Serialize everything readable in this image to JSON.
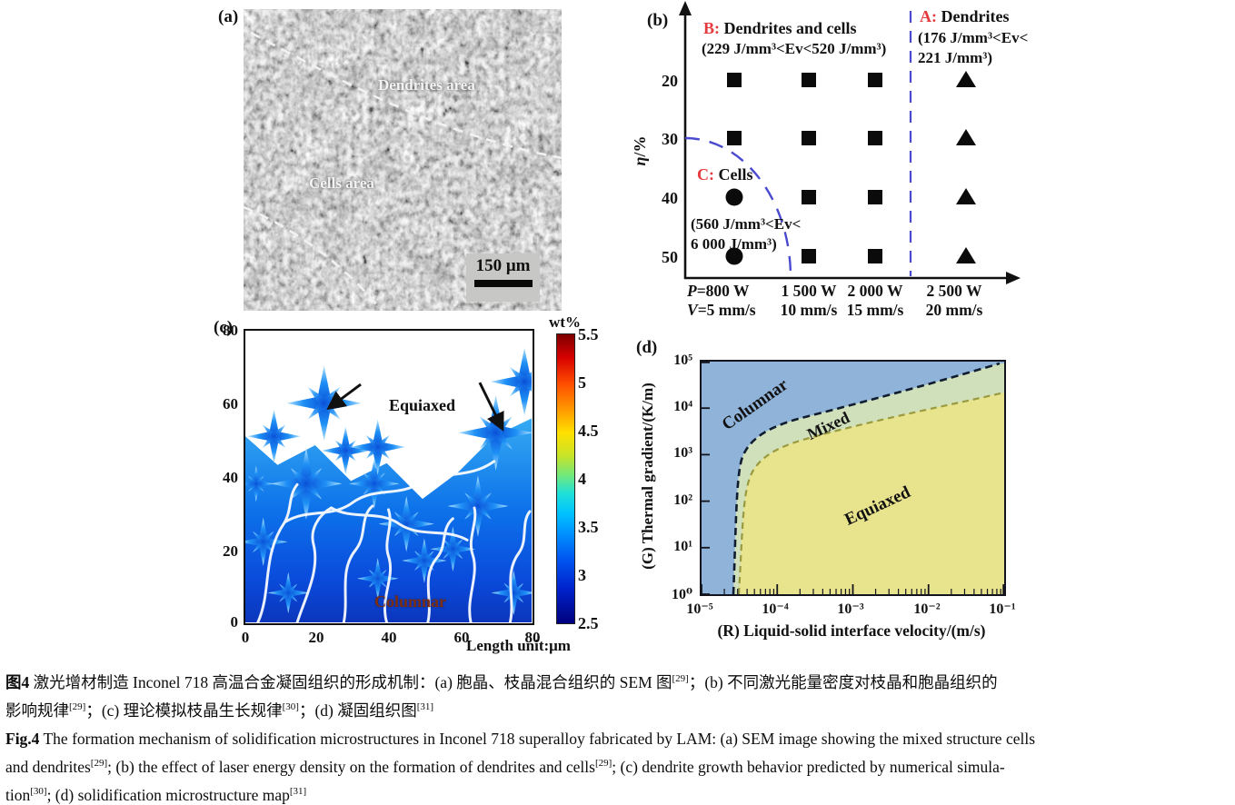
{
  "colors": {
    "region_letter_red": "#e53a3e",
    "dashed_blue": "#4a4ad0",
    "panel_d_columnar_fill": "#8fb3d9",
    "panel_d_mixed_fill": "#cfe0bb",
    "panel_d_equiaxed_fill": "#e8e38d",
    "panel_c_columnar_text": "#7c2d12",
    "panel_d_columnar_text": "#16305e"
  },
  "panel_a": {
    "tag": "(a)",
    "dendrites_label": "Dendrites area",
    "cells_label": "Cells area",
    "scale_label": "150 μm"
  },
  "panel_b": {
    "tag": "(b)",
    "region_b_prefix": "B:",
    "region_b_name": " Dendrites and cells",
    "region_b_range": "(229 J/mm³<Ev<520 J/mm³)",
    "region_a_prefix": "A:",
    "region_a_name": " Dendrites",
    "region_a_range1": "(176 J/mm³<Ev<",
    "region_a_range2": "221 J/mm³)",
    "region_c_prefix": "C:",
    "region_c_name": " Cells",
    "region_c_range1": "(560 J/mm³<Ev<",
    "region_c_range2": "6 000 J/mm³)",
    "y_label_eta": "η",
    "y_label_unit": "/%",
    "y_ticks": [
      "20",
      "30",
      "40",
      "50"
    ],
    "x_row1": {
      "c1_it": "P",
      "c1": "=800 W",
      "c2": "1 500 W",
      "c3": "2 000 W",
      "c4": "2 500 W"
    },
    "x_row2": {
      "c1_it": "V",
      "c1": "=5 mm/s",
      "c2": "10 mm/s",
      "c3": "15 mm/s",
      "c4": "20 mm/s"
    }
  },
  "panel_c": {
    "tag": "(c)",
    "y_ticks": [
      "80",
      "60",
      "40",
      "20",
      "0"
    ],
    "x_ticks": [
      "0",
      "20",
      "40",
      "60",
      "80"
    ],
    "equiaxed_label": "Equiaxed",
    "columnar_label": "Columnar",
    "colorbar_title": "wt%",
    "colorbar_ticks": [
      "5.5",
      "5",
      "4.5",
      "4",
      "3.5",
      "3",
      "2.5"
    ],
    "x_axis_label": "Length unit:μm"
  },
  "panel_d": {
    "tag": "(d)",
    "y_ticks": [
      "10⁵",
      "10⁴",
      "10³",
      "10²",
      "10¹",
      "10⁰"
    ],
    "x_ticks": [
      "10⁻⁵",
      "10⁻⁴",
      "10⁻³",
      "10⁻²",
      "10⁻¹"
    ],
    "columnar_label": "Columnar",
    "mixed_label": "Mixed",
    "equiaxed_label": "Equiaxed",
    "y_axis_label": "(G) Thermal gradient/(K/m)",
    "x_axis_label": "(R) Liquid-solid interface velocity/(m/s)"
  },
  "caption": {
    "zh_line1_tag": "图4",
    "zh_line1_a": "  激光增材制造 Inconel 718 高温合金凝固组织的形成机制：(a) 胞晶、枝晶混合组织的 SEM 图",
    "zh_line1_sup": "[29]",
    "zh_line1_b": "；(b) 不同激光能量密度对枝晶和胞晶组织的",
    "zh_line2_a": "影响规律",
    "zh_line2_sup1": "[29]",
    "zh_line2_b": "；(c) 理论模拟枝晶生长规律",
    "zh_line2_sup2": "[30]",
    "zh_line2_c": "；(d) 凝固组织图",
    "zh_line2_sup3": "[31]",
    "en_line1_tag": "Fig.4",
    "en_line1": "  The formation mechanism of solidification microstructures in Inconel 718 superalloy fabricated by LAM: (a) SEM image showing the mixed structure cells",
    "en_line2_a": "and dendrites",
    "en_line2_sup1": "[29]",
    "en_line2_b": "; (b) the effect of laser energy density on the formation of dendrites and cells",
    "en_line2_sup2": "[29]",
    "en_line2_c": "; (c) dendrite growth behavior predicted by numerical simula-",
    "en_line3_a": "tion",
    "en_line3_sup1": "[30]",
    "en_line3_b": "; (d) solidification microstructure map",
    "en_line3_sup2": "[31]"
  },
  "chart_data": [
    {
      "type": "scatter",
      "panel": "b",
      "title": "Effect of laser energy density on formation of dendrites and cells",
      "x_categories": [
        "P=800 W, V=5 mm/s",
        "1 500 W, 10 mm/s",
        "2 000 W, 15 mm/s",
        "2 500 W, 20 mm/s"
      ],
      "ylabel": "η/%",
      "y_ticks": [
        20,
        30,
        40,
        50
      ],
      "series": [
        {
          "name": "C: Cells (560 J/mm³<Ev<6 000 J/mm³)",
          "marker": "circle",
          "points": [
            [
              1,
              40
            ],
            [
              1,
              50
            ]
          ]
        },
        {
          "name": "B: Dendrites and cells (229 J/mm³<Ev<520 J/mm³)",
          "marker": "square",
          "points": [
            [
              1,
              20
            ],
            [
              2,
              20
            ],
            [
              3,
              20
            ],
            [
              1,
              30
            ],
            [
              2,
              30
            ],
            [
              3,
              30
            ],
            [
              2,
              40
            ],
            [
              3,
              40
            ],
            [
              2,
              50
            ],
            [
              3,
              50
            ]
          ]
        },
        {
          "name": "A: Dendrites (176 J/mm³<Ev<221 J/mm³)",
          "marker": "triangle",
          "points": [
            [
              4,
              20
            ],
            [
              4,
              30
            ],
            [
              4,
              40
            ],
            [
              4,
              50
            ]
          ]
        }
      ],
      "annotations": [
        "blue dashed quarter-arc bounding region C near origin",
        "blue dashed vertical line between 2 000 W and 2 500 W separating region A"
      ]
    },
    {
      "type": "heatmap",
      "panel": "c",
      "title": "Dendrite growth predicted by numerical simulation (solute concentration)",
      "xlabel": "Length unit:μm",
      "xlim": [
        0,
        80
      ],
      "ylim": [
        0,
        80
      ],
      "x_ticks": [
        0,
        20,
        40,
        60,
        80
      ],
      "y_ticks": [
        0,
        20,
        40,
        60,
        80
      ],
      "colorbar": {
        "title": "wt%",
        "min": 2.5,
        "max": 5.5,
        "ticks": [
          5.5,
          5,
          4.5,
          4,
          3.5,
          3,
          2.5
        ],
        "colormap": "jet"
      },
      "regions": [
        {
          "label": "Equiaxed",
          "x": 45,
          "y": 62
        },
        {
          "label": "Columnar",
          "x": 48,
          "y": 7
        }
      ]
    },
    {
      "type": "area",
      "panel": "d",
      "title": "Solidification microstructure map",
      "xlabel": "(R) Liquid-solid interface velocity/(m/s)",
      "ylabel": "(G) Thermal gradient/(K/m)",
      "x_scale": "log",
      "y_scale": "log",
      "xlim": [
        "1e-5",
        "1e-1"
      ],
      "ylim": [
        "1e0",
        "1e5"
      ],
      "regions": [
        {
          "name": "Columnar",
          "position": "upper-left",
          "fill": "#8fb3d9"
        },
        {
          "name": "Mixed",
          "position": "band between the two dashed boundaries",
          "fill": "#cfe0bb"
        },
        {
          "name": "Equiaxed",
          "position": "lower-right",
          "fill": "#e8e38d"
        }
      ],
      "boundaries": [
        {
          "between": "Columnar/Mixed",
          "style": "dark dashed",
          "points_R_G": [
            [
              "2.5e-5",
              1
            ],
            [
              "3e-5",
              1200.0
            ],
            [
              "1e-4",
              5000.0
            ],
            [
              "1e-2",
              40000.0
            ],
            [
              "9e-2",
              100000.0
            ]
          ]
        },
        {
          "between": "Mixed/Equiaxed",
          "style": "olive dashed",
          "points_R_G": [
            [
              "3e-5",
              1
            ],
            [
              "4e-5",
              600.0
            ],
            [
              "1e-4",
              1500.0
            ],
            [
              "1e-2",
              10000.0
            ],
            [
              "1e-1",
              25000.0
            ]
          ]
        }
      ]
    }
  ]
}
